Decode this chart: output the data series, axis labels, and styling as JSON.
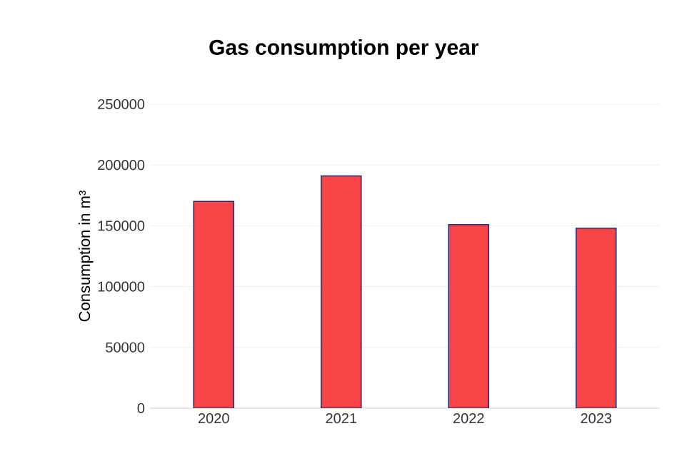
{
  "chart_data": {
    "type": "bar",
    "title": "Gas consumption per year",
    "ylabel": "Consumption in m³",
    "categories": [
      "2020",
      "2021",
      "2022",
      "2023"
    ],
    "values": [
      170000,
      191000,
      151000,
      148000
    ],
    "color": "#f84446",
    "ylim": [
      0,
      250000
    ],
    "yticks": [
      0,
      50000,
      100000,
      150000,
      200000,
      250000
    ],
    "grid": "y"
  }
}
